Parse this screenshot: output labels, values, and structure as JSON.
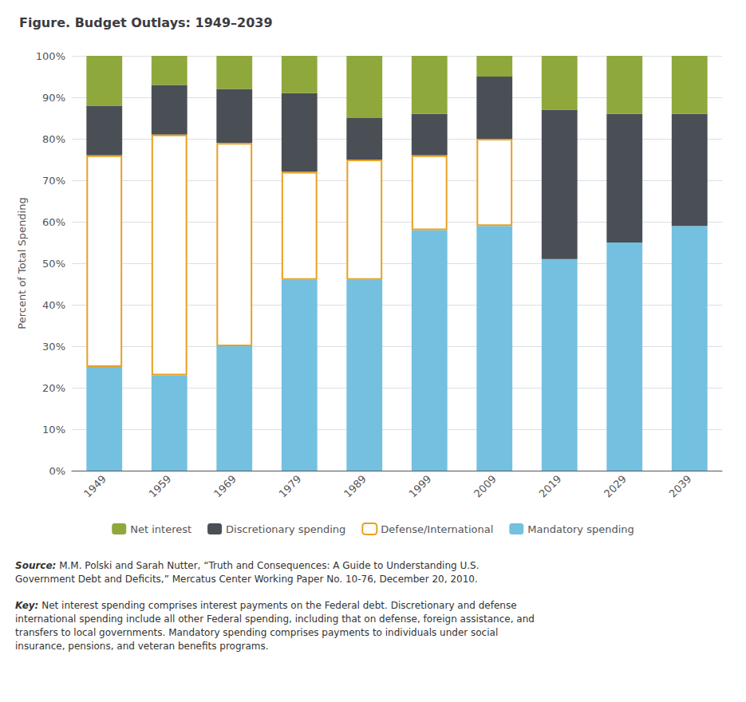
{
  "chart_data": {
    "type": "bar",
    "stacked": true,
    "title": "Figure. Budget Outlays: 1949–2039",
    "y_label": "Percent of Total Spending",
    "categories": [
      "1949",
      "1959",
      "1969",
      "1979",
      "1989",
      "1999",
      "2009",
      "2019",
      "2029",
      "2039"
    ],
    "series": [
      {
        "name": "Net interest",
        "color": "#8EA83B",
        "values": [
          12,
          7,
          8,
          9,
          15,
          14,
          5,
          13,
          14,
          14
        ]
      },
      {
        "name": "Discretionary spending",
        "color": "#4A4E55",
        "values": [
          12,
          12,
          13,
          19,
          10,
          10,
          15,
          36,
          31,
          27
        ]
      },
      {
        "name": "Defense/International",
        "color": "#E8A020",
        "values": [
          51,
          58,
          49,
          26,
          29,
          18,
          21,
          null,
          null,
          null
        ]
      },
      {
        "name": "Mandatory spending",
        "color": "#74C0E0",
        "values": [
          25,
          23,
          30,
          46,
          46,
          58,
          59,
          51,
          55,
          59
        ]
      }
    ],
    "ylim": [
      0,
      100
    ],
    "yticks": [
      {
        "value": 0,
        "label": "0%"
      },
      {
        "value": 10,
        "label": "10%"
      },
      {
        "value": 20,
        "label": "20%"
      },
      {
        "value": 30,
        "label": "30%"
      },
      {
        "value": 40,
        "label": "40%"
      },
      {
        "value": 50,
        "label": "50%"
      },
      {
        "value": 60,
        "label": "60%"
      },
      {
        "value": 70,
        "label": "70%"
      },
      {
        "value": 80,
        "label": "80%"
      },
      {
        "value": 90,
        "label": "90%"
      },
      {
        "value": 100,
        "label": "100%"
      }
    ],
    "grid": true,
    "legend": "bottom",
    "annotations": [
      {
        "label": "Source:",
        "text": "M.M. Polski and Sarah Nutter, “Truth and Consequences: A Guide to Understanding U.S.\nGovernment Debt and Deficits,” Mercatus Center Working Paper No. 10-76, December 20, 2010."
      },
      {
        "label": "Key:",
        "text": "Net interest spending comprises interest payments on the Federal debt. Discretionary and defense\ninternational spending include all other Federal spending, including that on defense, foreign assistance, and\ntransfers to local governments. Mandatory spending comprises payments to individuals under social\ninsurance, pensions, and veteran benefits programs."
      }
    ]
  }
}
